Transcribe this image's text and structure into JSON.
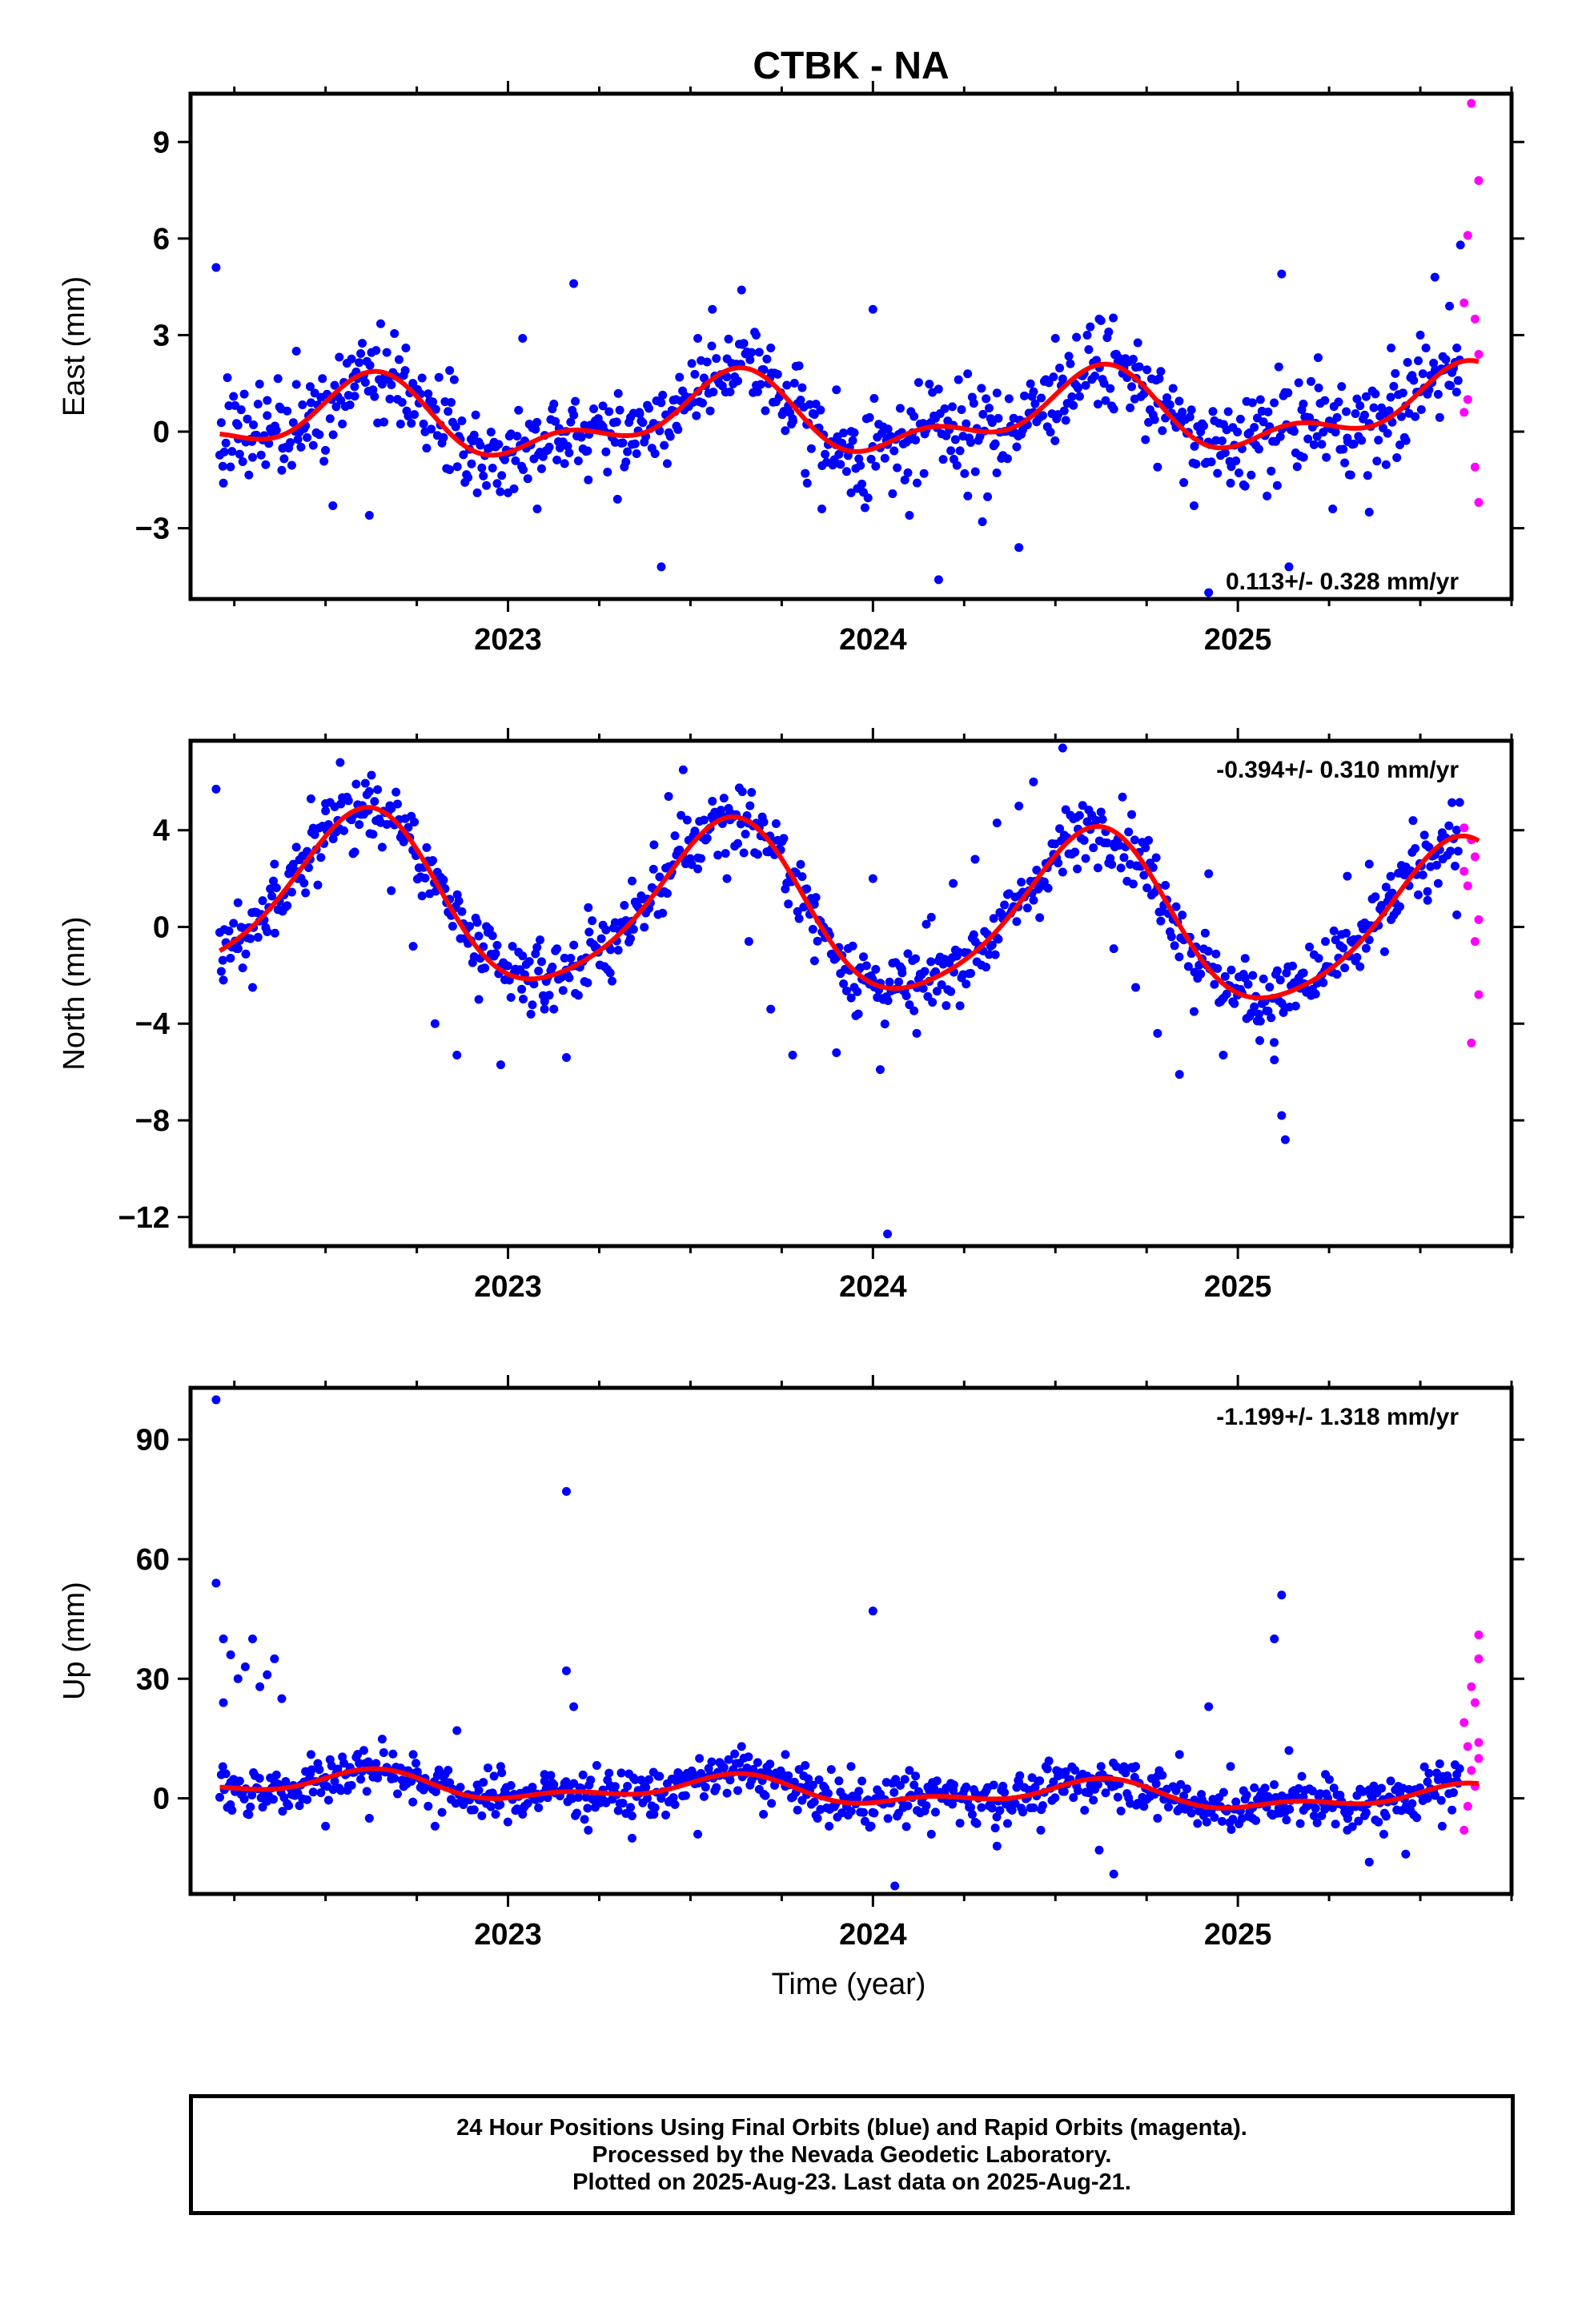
{
  "title": "CTBK - NA",
  "xlabel": "Time (year)",
  "caption": {
    "line1": "24 Hour Positions Using Final Orbits (blue) and Rapid Orbits (magenta).",
    "line2": "Processed by the Nevada Geodetic Laboratory.",
    "line3": "Plotted on 2025-Aug-23. Last data on 2025-Aug-21."
  },
  "colors": {
    "final": "#0000ff",
    "rapid": "#ff00ff",
    "fit": "#ff0000",
    "frame": "#000000"
  },
  "chart_data": [
    {
      "type": "scatter",
      "ylabel": "East (mm)",
      "rate_label": "0.113+/- 0.328 mm/yr",
      "xlim": [
        2022.13,
        2025.75
      ],
      "ylim": [
        -5.2,
        10.5
      ],
      "yticks": [
        -3,
        0,
        3,
        6,
        9
      ],
      "ytick_labels": [
        "−3",
        "0",
        "3",
        "6",
        "9"
      ],
      "xticks": [
        2023,
        2024,
        2025
      ],
      "xtick_labels": [
        "2023",
        "2024",
        "2025"
      ],
      "grid": false,
      "model": {
        "mean": 0.45,
        "rate": 0.113,
        "anchor": 2023.9,
        "annual_amp": 1.0,
        "semiannual_amp": 0.6
      },
      "final_points": [
        [
          2022.2,
          5.1
        ],
        [
          2022.22,
          -1.6
        ],
        [
          2022.26,
          0.2
        ],
        [
          2022.3,
          -0.8
        ],
        [
          2022.34,
          0.5
        ],
        [
          2022.38,
          -1.2
        ],
        [
          2022.42,
          2.5
        ],
        [
          2022.46,
          0.9
        ],
        [
          2022.52,
          -2.3
        ],
        [
          2022.58,
          1.1
        ],
        [
          2022.62,
          -2.6
        ],
        [
          2022.66,
          0.3
        ],
        [
          2022.72,
          2.6
        ],
        [
          2022.78,
          0.8
        ],
        [
          2022.84,
          1.9
        ],
        [
          2022.9,
          -1.0
        ],
        [
          2022.96,
          -0.4
        ],
        [
          2023.0,
          -1.9
        ],
        [
          2023.04,
          2.9
        ],
        [
          2023.08,
          -2.4
        ],
        [
          2023.14,
          0.1
        ],
        [
          2023.18,
          4.6
        ],
        [
          2023.22,
          -1.5
        ],
        [
          2023.26,
          0.8
        ],
        [
          2023.3,
          -2.1
        ],
        [
          2023.36,
          0.6
        ],
        [
          2023.42,
          -4.2
        ],
        [
          2023.46,
          1.0
        ],
        [
          2023.52,
          2.9
        ],
        [
          2023.56,
          3.8
        ],
        [
          2023.6,
          1.7
        ],
        [
          2023.64,
          4.4
        ],
        [
          2023.68,
          3.0
        ],
        [
          2023.72,
          2.6
        ],
        [
          2023.78,
          0.4
        ],
        [
          2023.82,
          -1.6
        ],
        [
          2023.86,
          -2.4
        ],
        [
          2023.9,
          1.3
        ],
        [
          2023.94,
          -1.9
        ],
        [
          2024.0,
          3.8
        ],
        [
          2024.04,
          -0.4
        ],
        [
          2024.1,
          -2.6
        ],
        [
          2024.14,
          -1.3
        ],
        [
          2024.18,
          -4.6
        ],
        [
          2024.22,
          0.2
        ],
        [
          2024.26,
          -2.0
        ],
        [
          2024.3,
          -2.8
        ],
        [
          2024.34,
          1.2
        ],
        [
          2024.4,
          -3.6
        ],
        [
          2024.44,
          0.6
        ],
        [
          2024.5,
          2.9
        ],
        [
          2024.56,
          1.4
        ],
        [
          2024.62,
          3.5
        ],
        [
          2024.66,
          0.7
        ],
        [
          2024.72,
          2.0
        ],
        [
          2024.78,
          -1.1
        ],
        [
          2024.84,
          0.3
        ],
        [
          2024.88,
          -2.3
        ],
        [
          2024.92,
          -5.0
        ],
        [
          2024.98,
          -1.6
        ],
        [
          2025.04,
          0.9
        ],
        [
          2025.08,
          -2.0
        ],
        [
          2025.12,
          4.9
        ],
        [
          2025.14,
          -4.2
        ],
        [
          2025.18,
          -0.8
        ],
        [
          2025.22,
          2.3
        ],
        [
          2025.26,
          -2.4
        ],
        [
          2025.3,
          -0.2
        ],
        [
          2025.36,
          -2.5
        ],
        [
          2025.42,
          2.6
        ],
        [
          2025.46,
          0.8
        ],
        [
          2025.5,
          3.0
        ],
        [
          2025.54,
          4.8
        ],
        [
          2025.56,
          1.9
        ],
        [
          2025.58,
          3.9
        ],
        [
          2025.6,
          2.6
        ],
        [
          2025.61,
          5.8
        ]
      ],
      "rapid_points": [
        [
          2025.64,
          10.2
        ],
        [
          2025.66,
          7.8
        ],
        [
          2025.63,
          6.1
        ],
        [
          2025.62,
          4.0
        ],
        [
          2025.65,
          3.5
        ],
        [
          2025.66,
          2.4
        ],
        [
          2025.63,
          1.0
        ],
        [
          2025.65,
          -1.1
        ],
        [
          2025.66,
          -2.2
        ],
        [
          2025.62,
          0.6
        ]
      ]
    },
    {
      "type": "scatter",
      "ylabel": "North (mm)",
      "rate_label": "-0.394+/- 0.310 mm/yr",
      "xlim": [
        2022.13,
        2025.75
      ],
      "ylim": [
        -13.2,
        7.7
      ],
      "yticks": [
        -12,
        -8,
        -4,
        0,
        4
      ],
      "ytick_labels": [
        "−12",
        "−8",
        "−4",
        "0",
        "4"
      ],
      "xticks": [
        2023,
        2024,
        2025
      ],
      "xtick_labels": [
        "2023",
        "2024",
        "2025"
      ],
      "grid": false,
      "model": {
        "mean": 0.6,
        "rate": -0.394,
        "anchor": 2023.9,
        "annual_amp": 3.4,
        "semiannual_amp": 0.5
      },
      "final_points": [
        [
          2022.2,
          5.7
        ],
        [
          2022.22,
          -2.2
        ],
        [
          2022.26,
          1.0
        ],
        [
          2022.3,
          -2.5
        ],
        [
          2022.36,
          2.6
        ],
        [
          2022.42,
          3.3
        ],
        [
          2022.46,
          5.3
        ],
        [
          2022.5,
          4.8
        ],
        [
          2022.54,
          6.8
        ],
        [
          2022.58,
          3.1
        ],
        [
          2022.62,
          5.6
        ],
        [
          2022.68,
          1.5
        ],
        [
          2022.74,
          -0.8
        ],
        [
          2022.8,
          -4.0
        ],
        [
          2022.86,
          -5.3
        ],
        [
          2022.92,
          -3.0
        ],
        [
          2022.98,
          -5.7
        ],
        [
          2023.04,
          -1.2
        ],
        [
          2023.1,
          -3.4
        ],
        [
          2023.16,
          -5.4
        ],
        [
          2023.22,
          0.8
        ],
        [
          2023.28,
          -1.9
        ],
        [
          2023.34,
          1.9
        ],
        [
          2023.4,
          3.4
        ],
        [
          2023.44,
          5.4
        ],
        [
          2023.48,
          6.5
        ],
        [
          2023.52,
          2.4
        ],
        [
          2023.56,
          5.2
        ],
        [
          2023.6,
          2.0
        ],
        [
          2023.66,
          -0.6
        ],
        [
          2023.72,
          -3.4
        ],
        [
          2023.78,
          -5.3
        ],
        [
          2023.84,
          -1.4
        ],
        [
          2023.9,
          -5.2
        ],
        [
          2023.96,
          -3.6
        ],
        [
          2024.0,
          2.0
        ],
        [
          2024.02,
          -5.9
        ],
        [
          2024.04,
          -12.7
        ],
        [
          2024.08,
          -1.9
        ],
        [
          2024.12,
          -4.4
        ],
        [
          2024.16,
          0.4
        ],
        [
          2024.22,
          1.8
        ],
        [
          2024.28,
          2.8
        ],
        [
          2024.34,
          4.3
        ],
        [
          2024.4,
          5.0
        ],
        [
          2024.44,
          6.0
        ],
        [
          2024.48,
          1.6
        ],
        [
          2024.52,
          7.4
        ],
        [
          2024.56,
          2.4
        ],
        [
          2024.6,
          4.6
        ],
        [
          2024.66,
          -0.9
        ],
        [
          2024.72,
          -2.5
        ],
        [
          2024.78,
          -4.4
        ],
        [
          2024.84,
          -6.1
        ],
        [
          2024.88,
          -3.5
        ],
        [
          2024.92,
          2.2
        ],
        [
          2024.96,
          -5.3
        ],
        [
          2025.02,
          -1.3
        ],
        [
          2025.06,
          -4.7
        ],
        [
          2025.1,
          -5.5
        ],
        [
          2025.12,
          -7.8
        ],
        [
          2025.13,
          -8.8
        ],
        [
          2025.18,
          -1.9
        ],
        [
          2025.24,
          -0.6
        ],
        [
          2025.3,
          2.1
        ],
        [
          2025.36,
          2.6
        ],
        [
          2025.42,
          0.3
        ],
        [
          2025.48,
          4.4
        ],
        [
          2025.52,
          1.1
        ],
        [
          2025.56,
          3.9
        ],
        [
          2025.6,
          0.5
        ]
      ],
      "rapid_points": [
        [
          2025.62,
          4.1
        ],
        [
          2025.64,
          3.6
        ],
        [
          2025.65,
          2.9
        ],
        [
          2025.63,
          1.7
        ],
        [
          2025.66,
          0.3
        ],
        [
          2025.65,
          -0.6
        ],
        [
          2025.66,
          -2.8
        ],
        [
          2025.64,
          -4.8
        ],
        [
          2025.62,
          2.3
        ]
      ]
    },
    {
      "type": "scatter",
      "ylabel": "Up (mm)",
      "rate_label": "-1.199+/- 1.318 mm/yr",
      "xlim": [
        2022.13,
        2025.75
      ],
      "ylim": [
        -24,
        103
      ],
      "yticks": [
        0,
        30,
        60,
        90
      ],
      "ytick_labels": [
        "0",
        "30",
        "60",
        "90"
      ],
      "xticks": [
        2023,
        2024,
        2025
      ],
      "xtick_labels": [
        "2023",
        "2024",
        "2025"
      ],
      "grid": false,
      "model": {
        "mean": 1.7,
        "rate": -1.199,
        "anchor": 2023.9,
        "annual_amp": 2.7,
        "semiannual_amp": 1.6
      },
      "final_points": [
        [
          2022.2,
          100.0
        ],
        [
          2022.2,
          54.0
        ],
        [
          2022.22,
          40.0
        ],
        [
          2022.24,
          36.0
        ],
        [
          2022.26,
          30.0
        ],
        [
          2022.28,
          33.0
        ],
        [
          2022.3,
          40.0
        ],
        [
          2022.32,
          28.0
        ],
        [
          2022.34,
          31.0
        ],
        [
          2022.36,
          35.0
        ],
        [
          2022.38,
          25.0
        ],
        [
          2022.22,
          24.0
        ],
        [
          2022.24,
          4.0
        ],
        [
          2022.46,
          11.0
        ],
        [
          2022.5,
          -7.0
        ],
        [
          2022.56,
          2.0
        ],
        [
          2022.62,
          -5.0
        ],
        [
          2022.68,
          6.0
        ],
        [
          2022.74,
          11.0
        ],
        [
          2022.8,
          -7.0
        ],
        [
          2022.86,
          17.0
        ],
        [
          2022.92,
          2.0
        ],
        [
          2022.98,
          8.0
        ],
        [
          2023.04,
          -4.0
        ],
        [
          2023.1,
          6.0
        ],
        [
          2023.16,
          77.0
        ],
        [
          2023.16,
          32.0
        ],
        [
          2023.18,
          23.0
        ],
        [
          2023.22,
          -8.0
        ],
        [
          2023.28,
          3.0
        ],
        [
          2023.34,
          -10.0
        ],
        [
          2023.4,
          -4.0
        ],
        [
          2023.46,
          5.0
        ],
        [
          2023.52,
          -9.0
        ],
        [
          2023.58,
          9.0
        ],
        [
          2023.64,
          13.0
        ],
        [
          2023.7,
          -4.0
        ],
        [
          2023.76,
          11.0
        ],
        [
          2023.82,
          3.0
        ],
        [
          2023.88,
          -7.0
        ],
        [
          2023.94,
          8.0
        ],
        [
          2024.0,
          47.0
        ],
        [
          2024.02,
          -1.0
        ],
        [
          2024.06,
          -22.0
        ],
        [
          2024.1,
          7.0
        ],
        [
          2024.16,
          -9.0
        ],
        [
          2024.22,
          2.0
        ],
        [
          2024.28,
          -6.0
        ],
        [
          2024.34,
          -12.0
        ],
        [
          2024.4,
          4.0
        ],
        [
          2024.46,
          -8.0
        ],
        [
          2024.52,
          6.0
        ],
        [
          2024.58,
          -3.0
        ],
        [
          2024.62,
          -13.0
        ],
        [
          2024.66,
          -19.0
        ],
        [
          2024.72,
          8.0
        ],
        [
          2024.78,
          -5.0
        ],
        [
          2024.84,
          11.0
        ],
        [
          2024.9,
          1.0
        ],
        [
          2024.92,
          23.0
        ],
        [
          2024.98,
          8.0
        ],
        [
          2025.04,
          -5.0
        ],
        [
          2025.1,
          40.0
        ],
        [
          2025.12,
          51.0
        ],
        [
          2025.14,
          12.0
        ],
        [
          2025.18,
          -3.0
        ],
        [
          2025.24,
          6.0
        ],
        [
          2025.3,
          -8.0
        ],
        [
          2025.36,
          -16.0
        ],
        [
          2025.4,
          -9.0
        ],
        [
          2025.46,
          -14.0
        ],
        [
          2025.52,
          0.0
        ],
        [
          2025.56,
          -7.0
        ],
        [
          2025.6,
          6.0
        ]
      ],
      "rapid_points": [
        [
          2025.66,
          41.0
        ],
        [
          2025.66,
          35.0
        ],
        [
          2025.64,
          28.0
        ],
        [
          2025.65,
          24.0
        ],
        [
          2025.62,
          19.0
        ],
        [
          2025.63,
          13.0
        ],
        [
          2025.66,
          10.0
        ],
        [
          2025.64,
          7.0
        ],
        [
          2025.65,
          3.0
        ],
        [
          2025.63,
          -2.0
        ],
        [
          2025.62,
          -8.0
        ],
        [
          2025.66,
          14.0
        ]
      ]
    }
  ]
}
